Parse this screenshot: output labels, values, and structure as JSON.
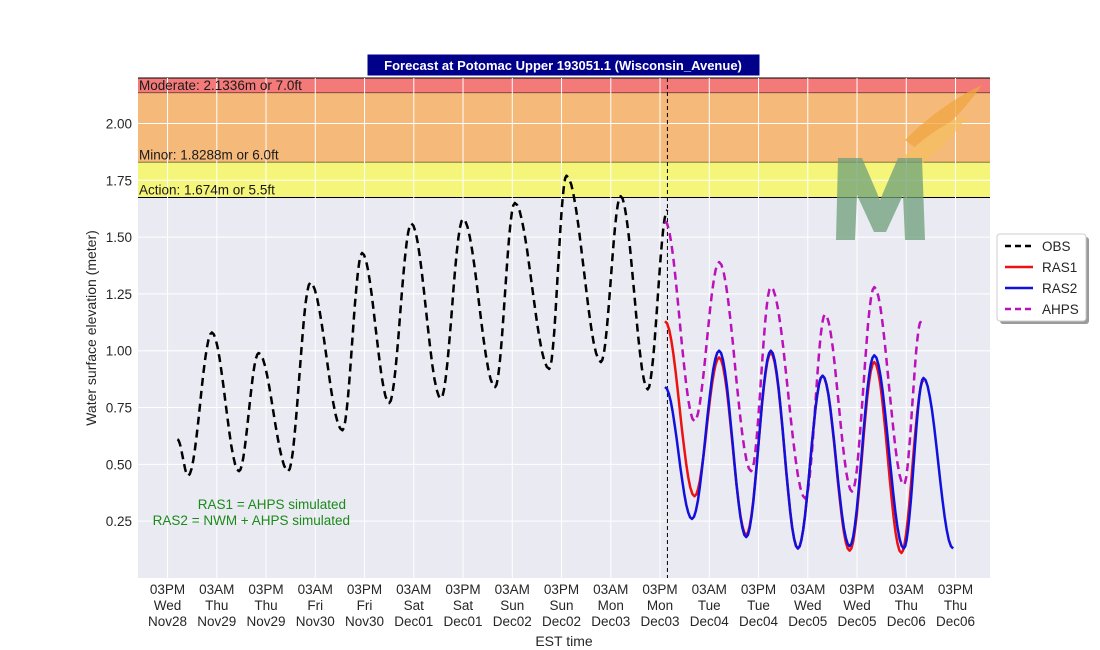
{
  "chart_data": {
    "type": "line",
    "title": "Forecast at Potomac Upper 193051.1 (Wisconsin_Avenue)",
    "xlabel": "EST time",
    "ylabel": "Water surface elevation (meter)",
    "ylim": [
      0.0,
      2.2
    ],
    "yticks": [
      "0.25",
      "0.50",
      "0.75",
      "1.00",
      "1.25",
      "1.50",
      "1.75",
      "2.00"
    ],
    "ytick_values": [
      0.25,
      0.5,
      0.75,
      1.0,
      1.25,
      1.5,
      1.75,
      2.0
    ],
    "xlim": [
      -0.6,
      16.7
    ],
    "xticks": [
      {
        "l1": "03PM",
        "l2": "Wed",
        "l3": "Nov28"
      },
      {
        "l1": "03AM",
        "l2": "Thu",
        "l3": "Nov29"
      },
      {
        "l1": "03PM",
        "l2": "Thu",
        "l3": "Nov29"
      },
      {
        "l1": "03AM",
        "l2": "Fri",
        "l3": "Nov30"
      },
      {
        "l1": "03PM",
        "l2": "Fri",
        "l3": "Nov30"
      },
      {
        "l1": "03AM",
        "l2": "Sat",
        "l3": "Dec01"
      },
      {
        "l1": "03PM",
        "l2": "Sat",
        "l3": "Dec01"
      },
      {
        "l1": "03AM",
        "l2": "Sun",
        "l3": "Dec02"
      },
      {
        "l1": "03PM",
        "l2": "Sun",
        "l3": "Dec02"
      },
      {
        "l1": "03AM",
        "l2": "Mon",
        "l3": "Dec03"
      },
      {
        "l1": "03PM",
        "l2": "Mon",
        "l3": "Dec03"
      },
      {
        "l1": "03AM",
        "l2": "Tue",
        "l3": "Dec04"
      },
      {
        "l1": "03PM",
        "l2": "Tue",
        "l3": "Dec04"
      },
      {
        "l1": "03AM",
        "l2": "Wed",
        "l3": "Dec05"
      },
      {
        "l1": "03PM",
        "l2": "Wed",
        "l3": "Dec05"
      },
      {
        "l1": "03AM",
        "l2": "Thu",
        "l3": "Dec06"
      },
      {
        "l1": "03PM",
        "l2": "Thu",
        "l3": "Dec06"
      }
    ],
    "forecast_start_x": 10.15,
    "bands": [
      {
        "label": "Moderate: 2.1336m or 7.0ft",
        "from": 2.1336,
        "to": 2.2,
        "color": "#f47a7a"
      },
      {
        "label": "Minor: 1.8288m or 6.0ft",
        "from": 1.8288,
        "to": 2.1336,
        "color": "#f5b97a"
      },
      {
        "label": "Action: 1.674m or 5.5ft",
        "from": 1.674,
        "to": 1.8288,
        "color": "#f5f57a"
      }
    ],
    "annotations": [
      "RAS1 = AHPS simulated",
      "RAS2 = NWM + AHPS simulated"
    ],
    "legend": {
      "placement": "right"
    },
    "series": [
      {
        "name": "OBS",
        "color": "#000000",
        "dash": true,
        "keys": [
          [
            0.2,
            0.61
          ],
          [
            0.42,
            0.45
          ],
          [
            0.9,
            1.08
          ],
          [
            1.45,
            0.47
          ],
          [
            1.85,
            0.99
          ],
          [
            2.45,
            0.47
          ],
          [
            2.9,
            1.3
          ],
          [
            3.55,
            0.65
          ],
          [
            3.95,
            1.43
          ],
          [
            4.5,
            0.77
          ],
          [
            4.95,
            1.56
          ],
          [
            5.55,
            0.79
          ],
          [
            6.0,
            1.58
          ],
          [
            6.65,
            0.84
          ],
          [
            7.05,
            1.65
          ],
          [
            7.75,
            0.92
          ],
          [
            8.1,
            1.77
          ],
          [
            8.8,
            0.95
          ],
          [
            9.2,
            1.68
          ],
          [
            9.75,
            0.83
          ],
          [
            10.15,
            1.62
          ]
        ]
      },
      {
        "name": "RAS1",
        "color": "#ee1111",
        "dash": false,
        "keys": [
          [
            10.1,
            1.13
          ],
          [
            10.7,
            0.36
          ],
          [
            11.2,
            0.97
          ],
          [
            11.75,
            0.19
          ],
          [
            12.25,
            0.99
          ],
          [
            12.8,
            0.13
          ],
          [
            13.3,
            0.89
          ],
          [
            13.85,
            0.12
          ],
          [
            14.35,
            0.95
          ],
          [
            14.9,
            0.11
          ],
          [
            15.35,
            0.87
          ]
        ]
      },
      {
        "name": "RAS2",
        "color": "#1111dd",
        "dash": false,
        "keys": [
          [
            10.1,
            0.84
          ],
          [
            10.65,
            0.26
          ],
          [
            11.2,
            1.0
          ],
          [
            11.75,
            0.18
          ],
          [
            12.25,
            1.0
          ],
          [
            12.8,
            0.13
          ],
          [
            13.3,
            0.89
          ],
          [
            13.85,
            0.14
          ],
          [
            14.35,
            0.98
          ],
          [
            14.95,
            0.13
          ],
          [
            15.35,
            0.88
          ],
          [
            15.95,
            0.13
          ]
        ]
      },
      {
        "name": "AHPS",
        "color": "#bb11bb",
        "dash": true,
        "keys": [
          [
            10.1,
            1.57
          ],
          [
            10.7,
            0.69
          ],
          [
            11.2,
            1.39
          ],
          [
            11.85,
            0.47
          ],
          [
            12.25,
            1.28
          ],
          [
            12.95,
            0.35
          ],
          [
            13.35,
            1.16
          ],
          [
            13.9,
            0.38
          ],
          [
            14.35,
            1.28
          ],
          [
            14.95,
            0.41
          ],
          [
            15.3,
            1.13
          ]
        ]
      }
    ]
  }
}
